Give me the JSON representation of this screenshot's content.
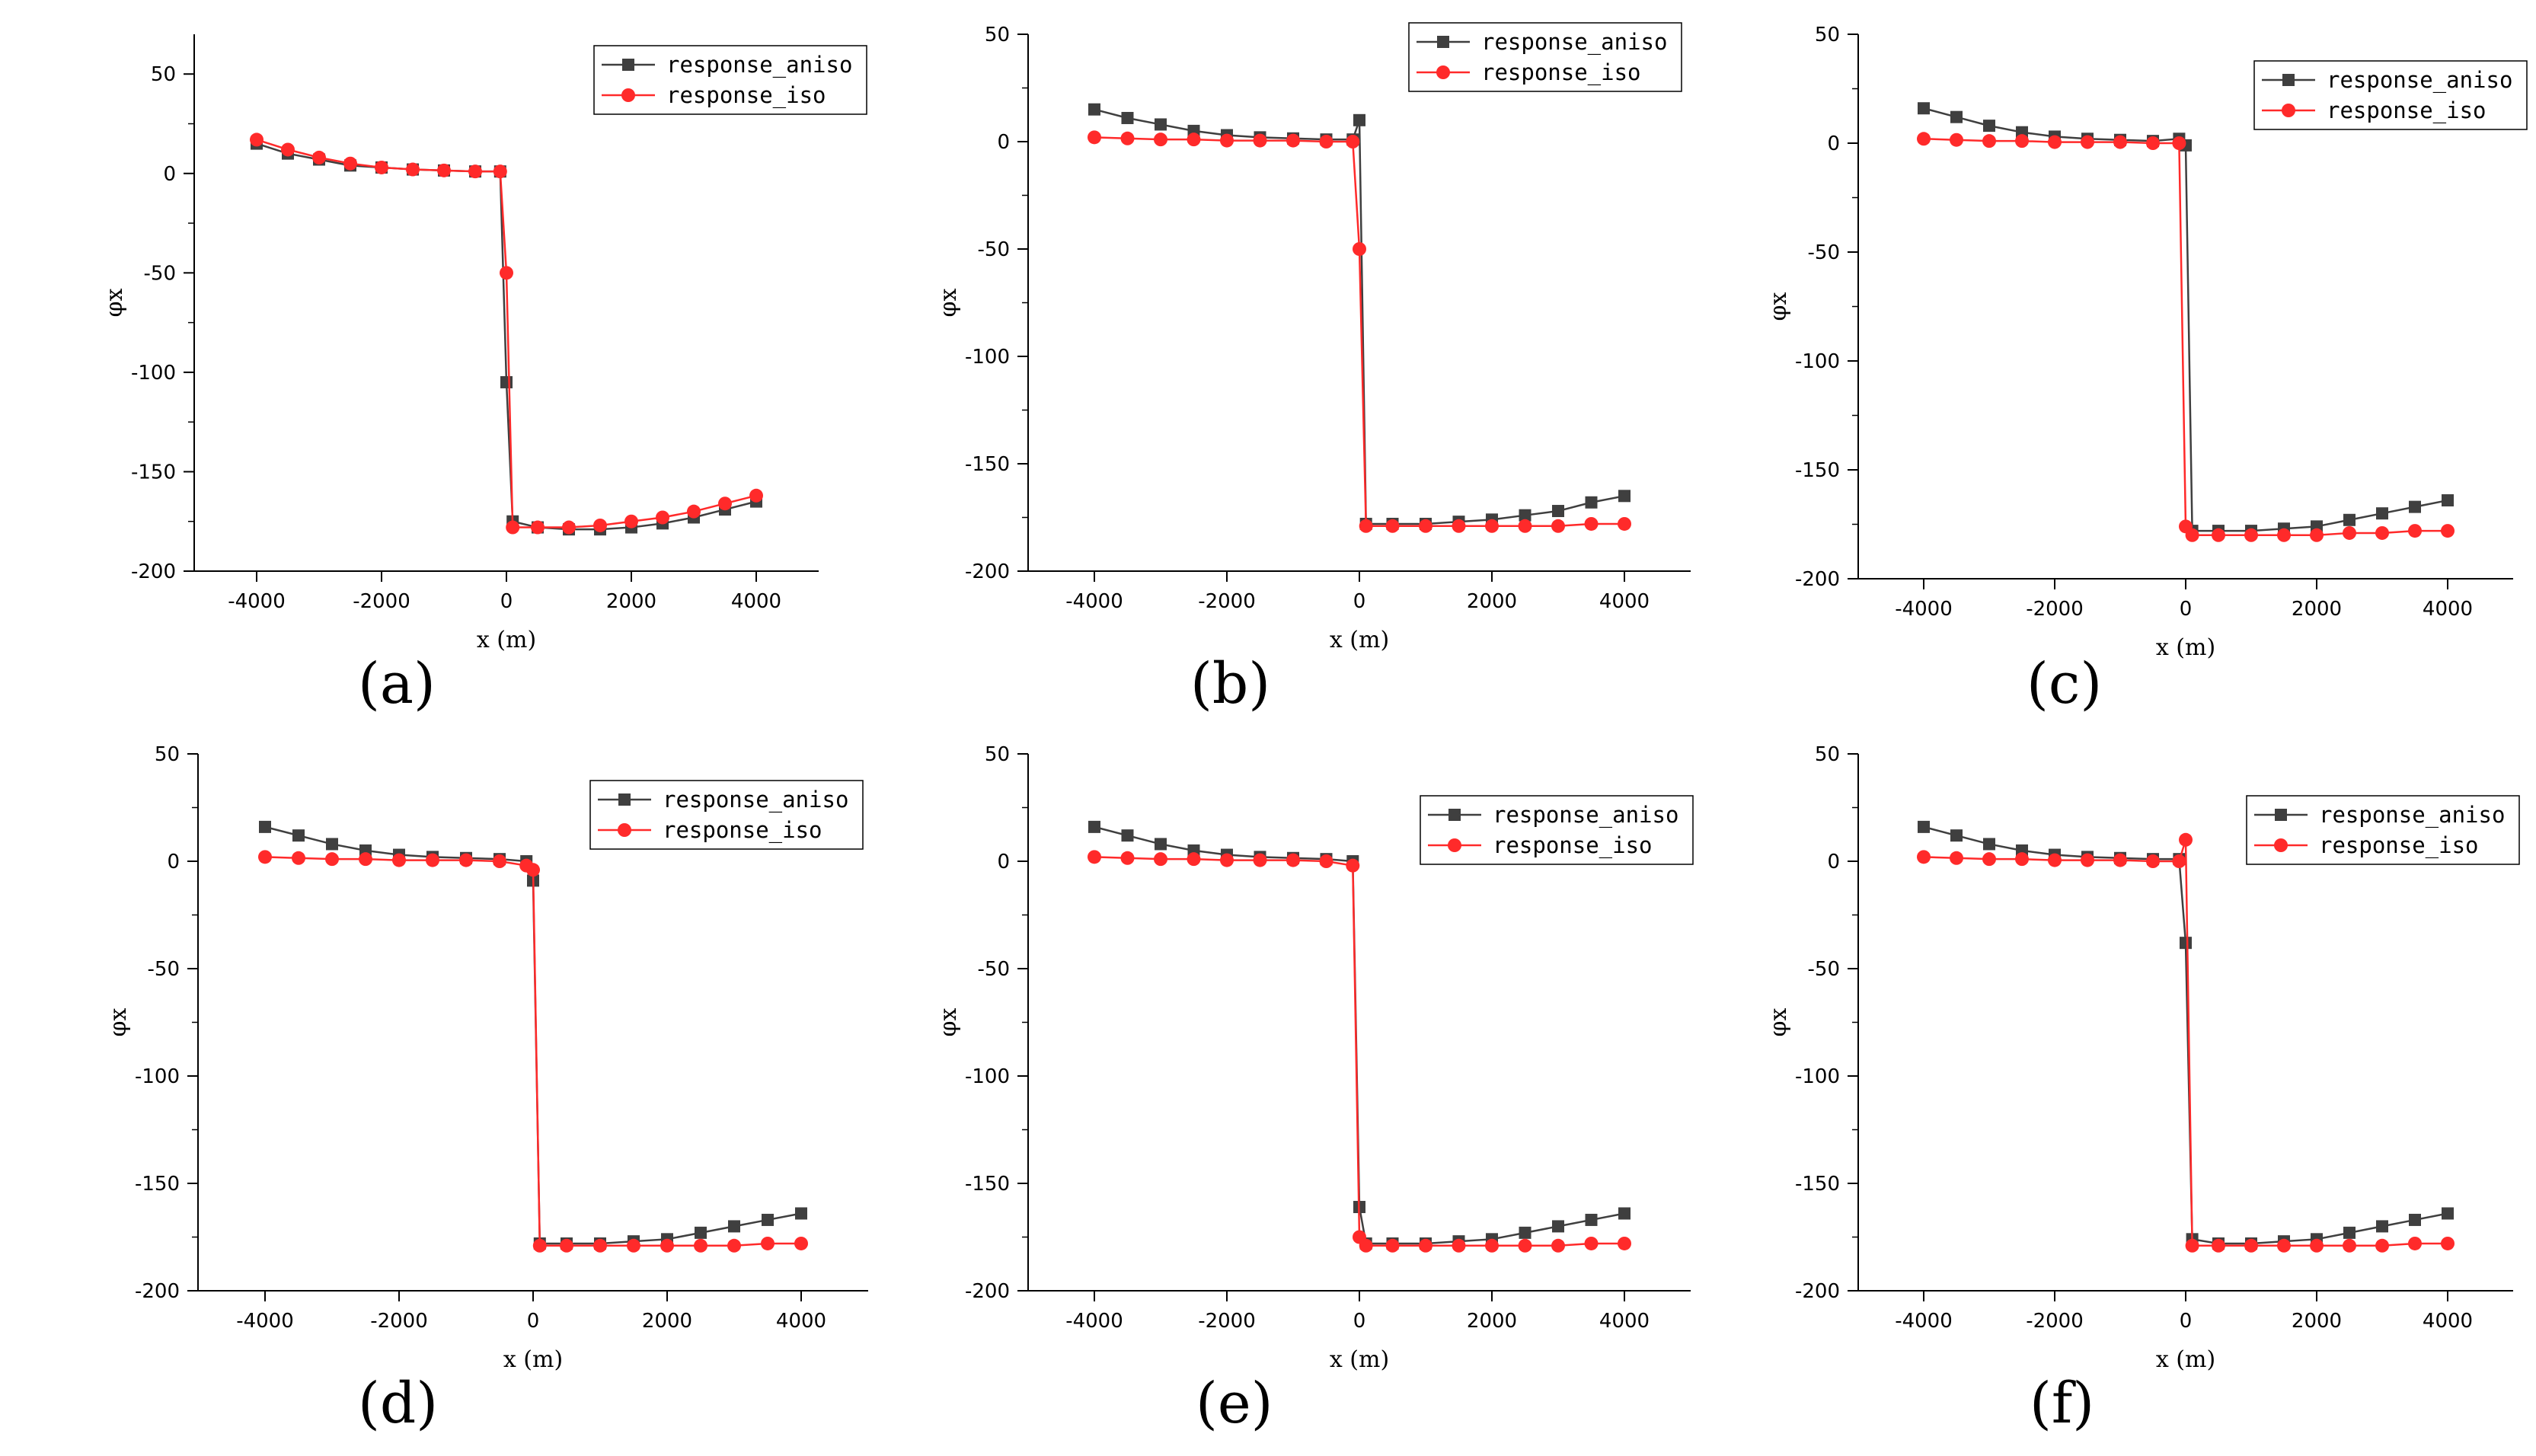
{
  "figure_labels": [
    "(a)",
    "(b)",
    "(c)",
    "(d)",
    "(e)",
    "(f)"
  ],
  "colors": {
    "aniso": "#3f3f3f",
    "iso": "#ff2a2a",
    "axis": "#000000"
  },
  "chart_data": [
    {
      "type": "line",
      "panel": "(a)",
      "xlabel": "x (m)",
      "ylabel": "φx",
      "xlim": [
        -5000,
        5000
      ],
      "ylim": [
        -200,
        70
      ],
      "xticks": [
        -4000,
        -2000,
        0,
        2000,
        4000
      ],
      "yticks": [
        50,
        0,
        -50,
        -100,
        -150,
        -200
      ],
      "legend": "top-right",
      "series": [
        {
          "name": "response_aniso",
          "marker": "square",
          "x": [
            -4000,
            -3500,
            -3000,
            -2500,
            -2000,
            -1500,
            -1000,
            -500,
            -100,
            0,
            100,
            500,
            1000,
            1500,
            2000,
            2500,
            3000,
            3500,
            4000
          ],
          "y": [
            15,
            10,
            7,
            4,
            3,
            2,
            1.5,
            1,
            1,
            -105,
            -175,
            -178,
            -179,
            -179,
            -178,
            -176,
            -173,
            -169,
            -165
          ]
        },
        {
          "name": "response_iso",
          "marker": "circle",
          "x": [
            -4000,
            -3500,
            -3000,
            -2500,
            -2000,
            -1500,
            -1000,
            -500,
            -100,
            0,
            100,
            500,
            1000,
            1500,
            2000,
            2500,
            3000,
            3500,
            4000
          ],
          "y": [
            17,
            12,
            8,
            5,
            3,
            2,
            1.5,
            1,
            1,
            -50,
            -178,
            -178,
            -178,
            -177,
            -175,
            -173,
            -170,
            -166,
            -162
          ]
        }
      ]
    },
    {
      "type": "line",
      "panel": "(b)",
      "xlabel": "x (m)",
      "ylabel": "φx",
      "xlim": [
        -5000,
        5000
      ],
      "ylim": [
        -200,
        50
      ],
      "xticks": [
        -4000,
        -2000,
        0,
        2000,
        4000
      ],
      "yticks": [
        50,
        0,
        -50,
        -100,
        -150,
        -200
      ],
      "legend": "top-right",
      "series": [
        {
          "name": "response_aniso",
          "marker": "square",
          "x": [
            -4000,
            -3500,
            -3000,
            -2500,
            -2000,
            -1500,
            -1000,
            -500,
            -100,
            0,
            100,
            500,
            1000,
            1500,
            2000,
            2500,
            3000,
            3500,
            4000
          ],
          "y": [
            15,
            11,
            8,
            5,
            3,
            2,
            1.5,
            1,
            1,
            10,
            -178,
            -178,
            -178,
            -177,
            -176,
            -174,
            -172,
            -168,
            -165
          ]
        },
        {
          "name": "response_iso",
          "marker": "circle",
          "x": [
            -4000,
            -3500,
            -3000,
            -2500,
            -2000,
            -1500,
            -1000,
            -500,
            -100,
            0,
            100,
            500,
            1000,
            1500,
            2000,
            2500,
            3000,
            3500,
            4000
          ],
          "y": [
            2,
            1.5,
            1,
            1,
            0.5,
            0.5,
            0.5,
            0,
            0,
            -50,
            -179,
            -179,
            -179,
            -179,
            -179,
            -179,
            -179,
            -178,
            -178
          ]
        }
      ]
    },
    {
      "type": "line",
      "panel": "(c)",
      "xlabel": "x (m)",
      "ylabel": "φx",
      "xlim": [
        -5000,
        5000
      ],
      "ylim": [
        -200,
        50
      ],
      "xticks": [
        -4000,
        -2000,
        0,
        2000,
        4000
      ],
      "yticks": [
        50,
        0,
        -50,
        -100,
        -150,
        -200
      ],
      "legend": "top-right",
      "series": [
        {
          "name": "response_aniso",
          "marker": "square",
          "x": [
            -4000,
            -3500,
            -3000,
            -2500,
            -2000,
            -1500,
            -1000,
            -500,
            -100,
            0,
            100,
            500,
            1000,
            1500,
            2000,
            2500,
            3000,
            3500,
            4000
          ],
          "y": [
            16,
            12,
            8,
            5,
            3,
            2,
            1.5,
            1,
            2,
            -1,
            -178,
            -178,
            -178,
            -177,
            -176,
            -173,
            -170,
            -167,
            -164
          ]
        },
        {
          "name": "response_iso",
          "marker": "circle",
          "x": [
            -4000,
            -3500,
            -3000,
            -2500,
            -2000,
            -1500,
            -1000,
            -500,
            -100,
            0,
            100,
            500,
            1000,
            1500,
            2000,
            2500,
            3000,
            3500,
            4000
          ],
          "y": [
            2,
            1.5,
            1,
            1,
            0.5,
            0.5,
            0.5,
            0,
            0,
            -176,
            -180,
            -180,
            -180,
            -180,
            -180,
            -179,
            -179,
            -178,
            -178
          ]
        }
      ]
    },
    {
      "type": "line",
      "panel": "(d)",
      "xlabel": "x (m)",
      "ylabel": "φx",
      "xlim": [
        -5000,
        5000
      ],
      "ylim": [
        -200,
        50
      ],
      "xticks": [
        -4000,
        -2000,
        0,
        2000,
        4000
      ],
      "yticks": [
        50,
        0,
        -50,
        -100,
        -150,
        -200
      ],
      "legend": "top-right",
      "series": [
        {
          "name": "response_aniso",
          "marker": "square",
          "x": [
            -4000,
            -3500,
            -3000,
            -2500,
            -2000,
            -1500,
            -1000,
            -500,
            -100,
            0,
            100,
            500,
            1000,
            1500,
            2000,
            2500,
            3000,
            3500,
            4000
          ],
          "y": [
            16,
            12,
            8,
            5,
            3,
            2,
            1.5,
            1,
            0,
            -9,
            -178,
            -178,
            -178,
            -177,
            -176,
            -173,
            -170,
            -167,
            -164
          ]
        },
        {
          "name": "response_iso",
          "marker": "circle",
          "x": [
            -4000,
            -3500,
            -3000,
            -2500,
            -2000,
            -1500,
            -1000,
            -500,
            -100,
            0,
            100,
            500,
            1000,
            1500,
            2000,
            2500,
            3000,
            3500,
            4000
          ],
          "y": [
            2,
            1.5,
            1,
            1,
            0.5,
            0.5,
            0.5,
            0,
            -2,
            -4,
            -179,
            -179,
            -179,
            -179,
            -179,
            -179,
            -179,
            -178,
            -178
          ]
        }
      ]
    },
    {
      "type": "line",
      "panel": "(e)",
      "xlabel": "x (m)",
      "ylabel": "φx",
      "xlim": [
        -5000,
        5000
      ],
      "ylim": [
        -200,
        50
      ],
      "xticks": [
        -4000,
        -2000,
        0,
        2000,
        4000
      ],
      "yticks": [
        50,
        0,
        -50,
        -100,
        -150,
        -200
      ],
      "legend": "top-right",
      "series": [
        {
          "name": "response_aniso",
          "marker": "square",
          "x": [
            -4000,
            -3500,
            -3000,
            -2500,
            -2000,
            -1500,
            -1000,
            -500,
            -100,
            0,
            100,
            500,
            1000,
            1500,
            2000,
            2500,
            3000,
            3500,
            4000
          ],
          "y": [
            16,
            12,
            8,
            5,
            3,
            2,
            1.5,
            1,
            0,
            -161,
            -178,
            -178,
            -178,
            -177,
            -176,
            -173,
            -170,
            -167,
            -164
          ]
        },
        {
          "name": "response_iso",
          "marker": "circle",
          "x": [
            -4000,
            -3500,
            -3000,
            -2500,
            -2000,
            -1500,
            -1000,
            -500,
            -100,
            0,
            100,
            500,
            1000,
            1500,
            2000,
            2500,
            3000,
            3500,
            4000
          ],
          "y": [
            2,
            1.5,
            1,
            1,
            0.5,
            0.5,
            0.5,
            0,
            -2,
            -175,
            -179,
            -179,
            -179,
            -179,
            -179,
            -179,
            -179,
            -178,
            -178
          ]
        }
      ]
    },
    {
      "type": "line",
      "panel": "(f)",
      "xlabel": "x (m)",
      "ylabel": "φx",
      "xlim": [
        -5000,
        5000
      ],
      "ylim": [
        -200,
        50
      ],
      "xticks": [
        -4000,
        -2000,
        0,
        2000,
        4000
      ],
      "yticks": [
        50,
        0,
        -50,
        -100,
        -150,
        -200
      ],
      "legend": "top-right",
      "series": [
        {
          "name": "response_aniso",
          "marker": "square",
          "x": [
            -4000,
            -3500,
            -3000,
            -2500,
            -2000,
            -1500,
            -1000,
            -500,
            -100,
            0,
            100,
            500,
            1000,
            1500,
            2000,
            2500,
            3000,
            3500,
            4000
          ],
          "y": [
            16,
            12,
            8,
            5,
            3,
            2,
            1.5,
            1,
            1,
            -38,
            -176,
            -178,
            -178,
            -177,
            -176,
            -173,
            -170,
            -167,
            -164
          ]
        },
        {
          "name": "response_iso",
          "marker": "circle",
          "x": [
            -4000,
            -3500,
            -3000,
            -2500,
            -2000,
            -1500,
            -1000,
            -500,
            -100,
            0,
            100,
            500,
            1000,
            1500,
            2000,
            2500,
            3000,
            3500,
            4000
          ],
          "y": [
            2,
            1.5,
            1,
            1,
            0.5,
            0.5,
            0.5,
            0,
            0,
            10,
            -179,
            -179,
            -179,
            -179,
            -179,
            -179,
            -179,
            -178,
            -178
          ]
        }
      ]
    }
  ]
}
